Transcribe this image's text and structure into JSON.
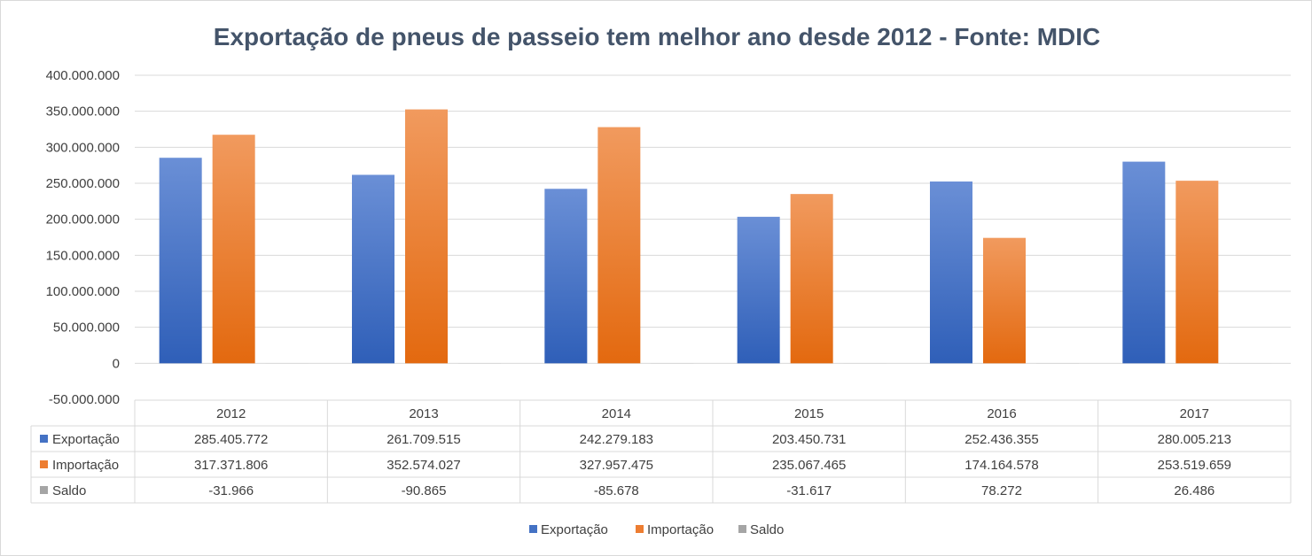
{
  "chart_data": {
    "type": "bar",
    "title": "Exportação de pneus de passeio tem melhor ano desde 2012 - Fonte: MDIC",
    "categories": [
      "2012",
      "2013",
      "2014",
      "2015",
      "2016",
      "2017"
    ],
    "series": [
      {
        "name": "Exportação",
        "color": "#4472c4",
        "values": [
          285405772,
          261709515,
          242279183,
          203450731,
          252436355,
          280005213
        ],
        "labels": [
          "285.405.772",
          "261.709.515",
          "242.279.183",
          "203.450.731",
          "252.436.355",
          "280.005.213"
        ]
      },
      {
        "name": "Importação",
        "color": "#ed7d31",
        "values": [
          317371806,
          352574027,
          327957475,
          235067465,
          174164578,
          253519659
        ],
        "labels": [
          "317.371.806",
          "352.574.027",
          "327.957.475",
          "235.067.465",
          "174.164.578",
          "253.519.659"
        ]
      },
      {
        "name": "Saldo",
        "color": "#a5a5a5",
        "values": [
          -31966,
          -90865,
          -85678,
          -31617,
          78272,
          26486
        ],
        "labels": [
          "-31.966",
          "-90.865",
          "-85.678",
          "-31.617",
          "78.272",
          "26.486"
        ]
      }
    ],
    "ylim": [
      -50000000,
      400000000
    ],
    "ytick_values": [
      400000000,
      350000000,
      300000000,
      250000000,
      200000000,
      150000000,
      100000000,
      50000000,
      0,
      -50000000
    ],
    "ytick_labels": [
      "400.000.000",
      "350.000.000",
      "300.000.000",
      "250.000.000",
      "200.000.000",
      "150.000.000",
      "100.000.000",
      "50.000.000",
      "0",
      "-50.000.000"
    ],
    "grid": true,
    "legend_position": "bottom",
    "data_table": true
  }
}
